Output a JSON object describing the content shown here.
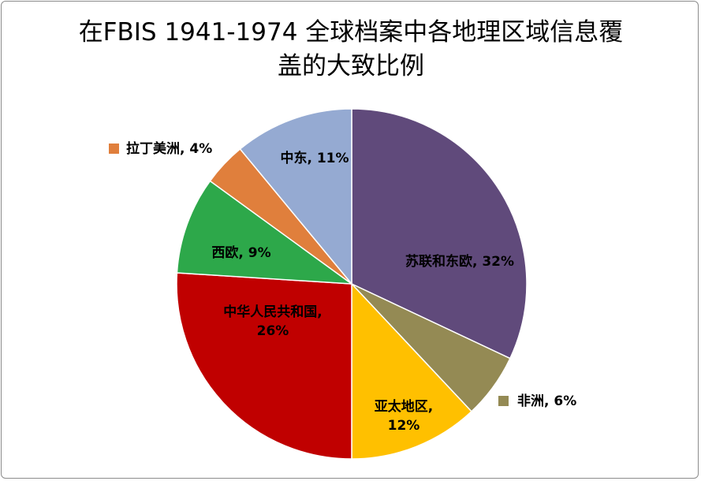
{
  "chart_data": {
    "type": "pie",
    "title": "在FBIS 1941-1974 全球档案中各地理区域信息覆盖的大致比例",
    "title_line1": "在FBIS 1941-1974 全球档案中各地理区域信息覆",
    "title_line2": "盖的大致比例",
    "start_angle_deg": 0,
    "direction": "clockwise",
    "legend": "none",
    "slices": [
      {
        "name": "苏联和东欧",
        "value": 32,
        "label": "苏联和东欧, 32%",
        "color": "#604a7b"
      },
      {
        "name": "非洲",
        "value": 6,
        "label": "非洲, 6%",
        "color": "#948a54"
      },
      {
        "name": "亚太地区",
        "value": 12,
        "label_line1": "亚太地区,",
        "label_line2": "12%",
        "color": "#ffc000"
      },
      {
        "name": "中华人民共和国",
        "value": 26,
        "label_line1": "中华人民共和国,",
        "label_line2": "26%",
        "color": "#c00000"
      },
      {
        "name": "西欧",
        "value": 9,
        "label": "西欧, 9%",
        "color": "#2da84a"
      },
      {
        "name": "拉丁美洲",
        "value": 4,
        "label": "拉丁美洲, 4%",
        "color": "#e07f3c"
      },
      {
        "name": "中东",
        "value": 11,
        "label": "中东, 11%",
        "color": "#95aad2"
      }
    ]
  }
}
